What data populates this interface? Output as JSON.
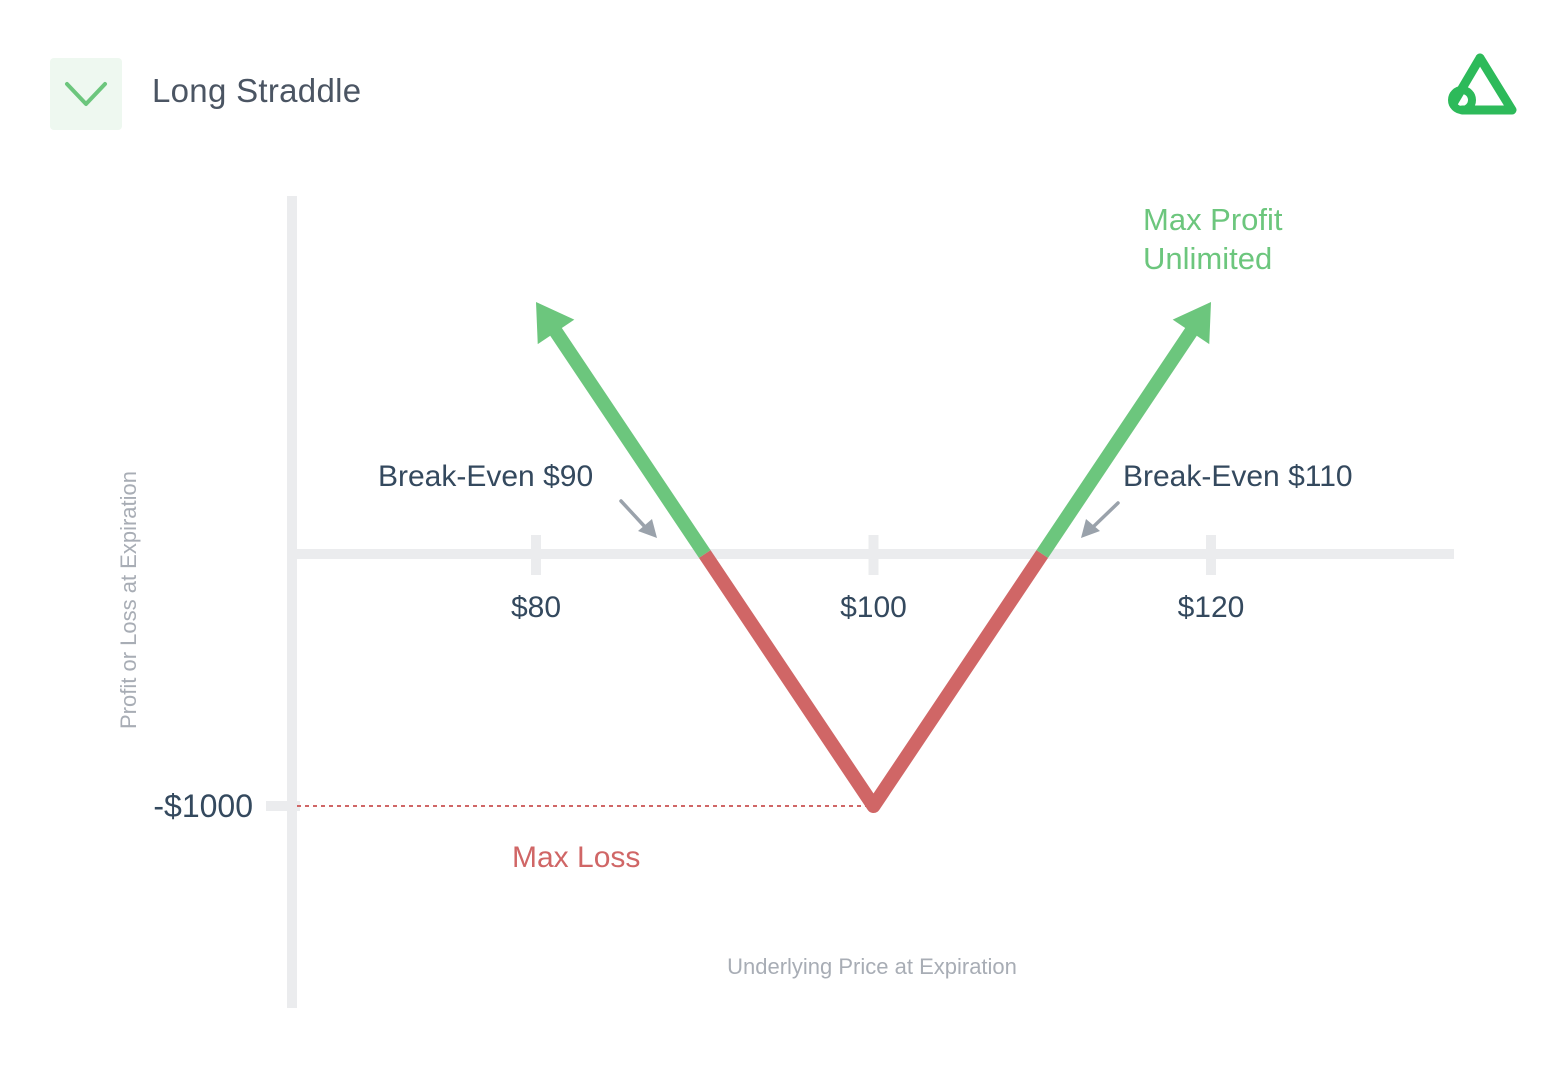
{
  "header": {
    "title": "Long Straddle",
    "badge_icon": "chevron-down-icon",
    "logo_icon": "brand-logo-icon"
  },
  "colors": {
    "profit": "#6cc67d",
    "loss": "#d06666",
    "axis": "#ebecee",
    "text_dark": "#34495e",
    "text_muted": "#a8adb5",
    "arrow_gray": "#9aa2ab"
  },
  "chart_data": {
    "type": "line",
    "title": "Long Straddle",
    "xlabel": "Underlying Price at Expiration",
    "ylabel": "Profit or Loss at Expiration",
    "x_ticks": [
      "$80",
      "$100",
      "$120"
    ],
    "x_tick_values": [
      80,
      100,
      120
    ],
    "y_ticks": [
      "-$1000"
    ],
    "y_tick_values": [
      -1000
    ],
    "series": [
      {
        "x": [
          80,
          100,
          120
        ],
        "y": [
          1000,
          -1000,
          1000
        ]
      }
    ],
    "annotations": {
      "break_even_low": "Break-Even $90",
      "break_even_high": "Break-Even $110",
      "max_profit_line1": "Max Profit",
      "max_profit_line2": "Unlimited",
      "max_loss": "Max Loss"
    },
    "break_even_values": [
      90,
      110
    ],
    "max_loss_value": -1000
  }
}
